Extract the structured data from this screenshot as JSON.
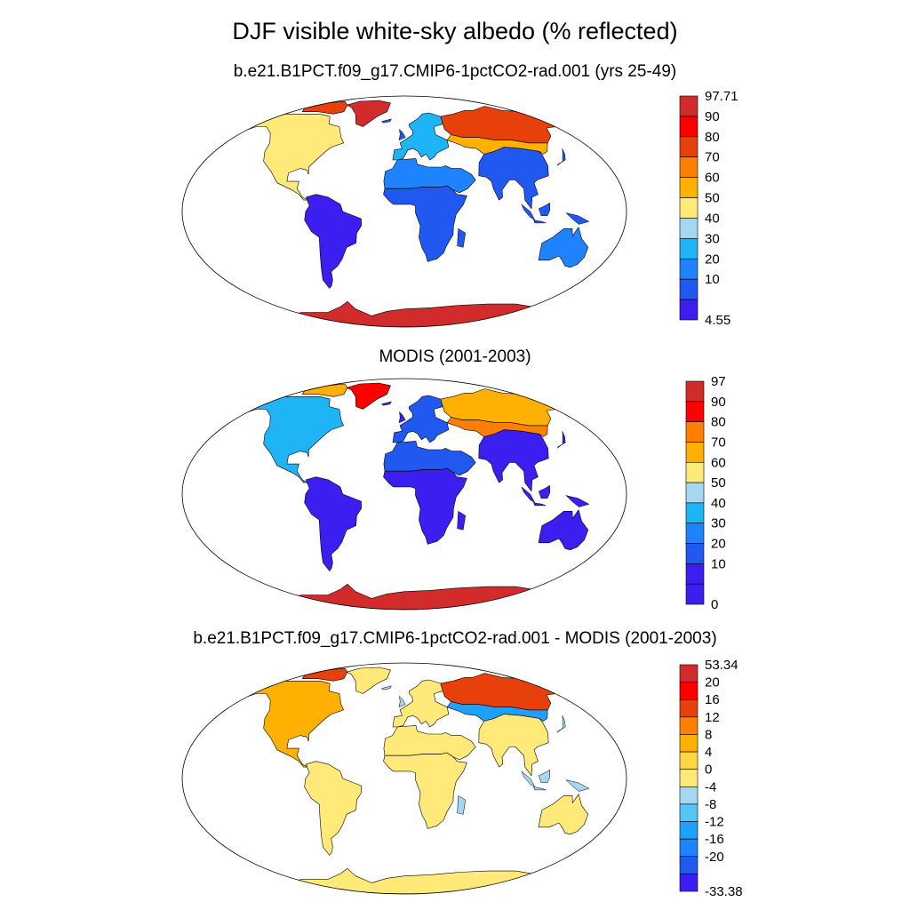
{
  "figure": {
    "title": "DJF visible white-sky albedo (% reflected)"
  },
  "chart_data": [
    {
      "type": "heatmap",
      "title": "b.e21.B1PCT.f09_g17.CMIP6-1pctCO2-rad.001 (yrs 25-49)",
      "projection": "robinson",
      "colorbar": {
        "labels": [
          "97.71",
          "90",
          "80",
          "70",
          "60",
          "50",
          "40",
          "30",
          "20",
          "10",
          "4.55"
        ],
        "colors": [
          "#d22b2b",
          "#ff0000",
          "#e8400a",
          "#ff7f00",
          "#ffb000",
          "#ffe978",
          "#a5d7f2",
          "#1fb4f5",
          "#1f82ff",
          "#2058f0",
          "#3b1ff0"
        ]
      },
      "regions": [
        {
          "name": "Antarctica",
          "level": 10
        },
        {
          "name": "Greenland",
          "level": 10
        },
        {
          "name": "Canadian Arctic",
          "level": 8
        },
        {
          "name": "North America",
          "level": 5
        },
        {
          "name": "South America",
          "level": 0
        },
        {
          "name": "Europe",
          "level": 3
        },
        {
          "name": "Siberia",
          "level": 8
        },
        {
          "name": "Central Asia",
          "level": 6
        },
        {
          "name": "Sahara/Arabia",
          "level": 2
        },
        {
          "name": "Africa",
          "level": 1
        },
        {
          "name": "South Asia",
          "level": 1
        },
        {
          "name": "Australia",
          "level": 2
        }
      ]
    },
    {
      "type": "heatmap",
      "title": "MODIS (2001-2003)",
      "projection": "robinson",
      "colorbar": {
        "labels": [
          "97",
          "90",
          "80",
          "70",
          "60",
          "50",
          "40",
          "30",
          "20",
          "10",
          "0"
        ],
        "colors": [
          "#d22b2b",
          "#ff0000",
          "#ff7f00",
          "#ffb000",
          "#ffe978",
          "#a5d7f2",
          "#1fb4f5",
          "#1f82ff",
          "#2058f0",
          "#3b1ff0",
          "#3b1ff0"
        ]
      },
      "regions": [
        {
          "name": "Antarctica",
          "level": 10
        },
        {
          "name": "Greenland",
          "level": 9
        },
        {
          "name": "Canadian Arctic",
          "level": 7
        },
        {
          "name": "North America",
          "level": 4
        },
        {
          "name": "South America",
          "level": 0
        },
        {
          "name": "Europe",
          "level": 2
        },
        {
          "name": "Siberia",
          "level": 7
        },
        {
          "name": "Central Asia",
          "level": 8
        },
        {
          "name": "Sahara/Arabia",
          "level": 2
        },
        {
          "name": "Africa",
          "level": 1
        },
        {
          "name": "South Asia",
          "level": 1
        },
        {
          "name": "Australia",
          "level": 1
        }
      ]
    },
    {
      "type": "heatmap",
      "title": "b.e21.B1PCT.f09_g17.CMIP6-1pctCO2-rad.001 - MODIS (2001-2003)",
      "projection": "robinson",
      "colorbar": {
        "labels": [
          "53.34",
          "20",
          "16",
          "12",
          "8",
          "4",
          "0",
          "-4",
          "-8",
          "-12",
          "-16",
          "-20",
          "-33.38"
        ],
        "colors": [
          "#d22b2b",
          "#ff0000",
          "#e8400a",
          "#ff7f00",
          "#ffb000",
          "#ffd640",
          "#ffe978",
          "#a5d7f2",
          "#57c4f5",
          "#1fa0ff",
          "#1f82ff",
          "#2058f0",
          "#3b1ff0"
        ]
      },
      "regions": [
        {
          "name": "Antarctica",
          "level": 6
        },
        {
          "name": "Greenland",
          "level": 6
        },
        {
          "name": "Canadian Arctic",
          "level": 10
        },
        {
          "name": "North America",
          "level": 8
        },
        {
          "name": "South America",
          "level": 6
        },
        {
          "name": "Europe",
          "level": 6
        },
        {
          "name": "Siberia",
          "level": 10
        },
        {
          "name": "Central Asia",
          "level": 3
        },
        {
          "name": "Sahara/Arabia",
          "level": 6
        },
        {
          "name": "Africa",
          "level": 6
        },
        {
          "name": "South Asia",
          "level": 6
        },
        {
          "name": "Australia",
          "level": 6
        }
      ]
    }
  ]
}
